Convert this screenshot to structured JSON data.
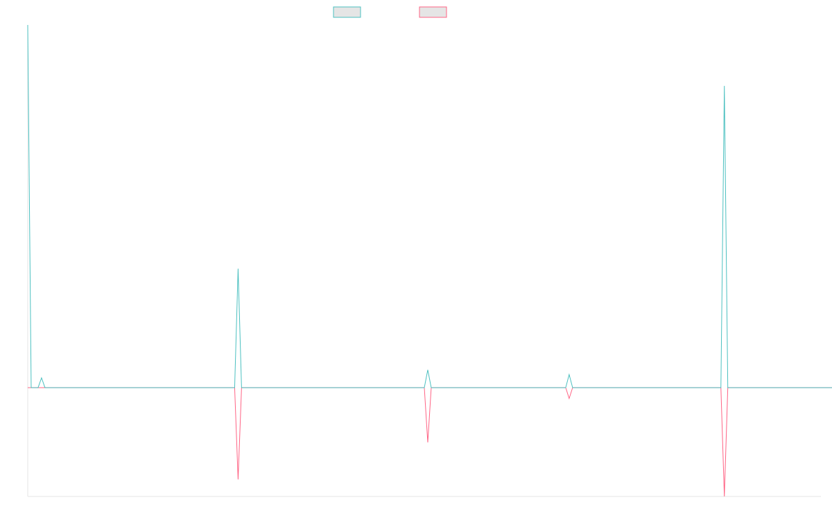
{
  "chart_data": {
    "type": "line",
    "x_count": 231,
    "grid": false,
    "legend": {
      "placement": "top-center"
    },
    "colors": {
      "series_a": "#4bc0c0",
      "series_b": "#ff6384",
      "legend_fill": "#e5e5e5",
      "axis": "#e5e5e5"
    },
    "ylim": [
      -30,
      100
    ],
    "series": [
      {
        "key": "series_a",
        "color": "#4bc0c0",
        "values": [
          100,
          0,
          0,
          0,
          2.7,
          0,
          0,
          0,
          0,
          0,
          0,
          0,
          0,
          0,
          0,
          0,
          0,
          0,
          0,
          0,
          0,
          0,
          0,
          0,
          0,
          0,
          0,
          0,
          0,
          0,
          0,
          0,
          0,
          0,
          0,
          0,
          0,
          0,
          0,
          0,
          0,
          0,
          0,
          0,
          0,
          0,
          0,
          0,
          0,
          0,
          0,
          0,
          0,
          0,
          0,
          0,
          0,
          0,
          0,
          0,
          0,
          32.8,
          0,
          0,
          0,
          0,
          0,
          0,
          0,
          0,
          0,
          0,
          0,
          0,
          0,
          0,
          0,
          0,
          0,
          0,
          0,
          0,
          0,
          0,
          0,
          0,
          0,
          0,
          0,
          0,
          0,
          0,
          0,
          0,
          0,
          0,
          0,
          0,
          0,
          0,
          0,
          0,
          0,
          0,
          0,
          0,
          0,
          0,
          0,
          0,
          0,
          0,
          0,
          0,
          0,
          0,
          4.9,
          0,
          0,
          0,
          0,
          0,
          0,
          0,
          0,
          0,
          0,
          0,
          0,
          0,
          0,
          0,
          0,
          0,
          0,
          0,
          0,
          0,
          0,
          0,
          0,
          0,
          0,
          0,
          0,
          0,
          0,
          0,
          0,
          0,
          0,
          0,
          0,
          0,
          0,
          0,
          0,
          3.6,
          0,
          0,
          0,
          0,
          0,
          0,
          0,
          0,
          0,
          0,
          0,
          0,
          0,
          0,
          0,
          0,
          0,
          0,
          0,
          0,
          0,
          0,
          0,
          0,
          0,
          0,
          0,
          0,
          0,
          0,
          0,
          0,
          0,
          0,
          0,
          0,
          0,
          0,
          0,
          0,
          0,
          0,
          0,
          0,
          83.2,
          0,
          0,
          0,
          0,
          0,
          0,
          0,
          0,
          0,
          0,
          0,
          0,
          0,
          0,
          0,
          0,
          0,
          0,
          0,
          0,
          0,
          0,
          0,
          0,
          0,
          0,
          0,
          0,
          0,
          0,
          0,
          0,
          0,
          0,
          0
        ]
      },
      {
        "key": "series_b",
        "color": "#ff6384",
        "values": [
          0,
          0,
          0,
          0,
          0,
          0,
          0,
          0,
          0,
          0,
          0,
          0,
          0,
          0,
          0,
          0,
          0,
          0,
          0,
          0,
          0,
          0,
          0,
          0,
          0,
          0,
          0,
          0,
          0,
          0,
          0,
          0,
          0,
          0,
          0,
          0,
          0,
          0,
          0,
          0,
          0,
          0,
          0,
          0,
          0,
          0,
          0,
          0,
          0,
          0,
          0,
          0,
          0,
          0,
          0,
          0,
          0,
          0,
          0,
          0,
          0,
          -25.3,
          0,
          0,
          0,
          0,
          0,
          0,
          0,
          0,
          0,
          0,
          0,
          0,
          0,
          0,
          0,
          0,
          0,
          0,
          0,
          0,
          0,
          0,
          0,
          0,
          0,
          0,
          0,
          0,
          0,
          0,
          0,
          0,
          0,
          0,
          0,
          0,
          0,
          0,
          0,
          0,
          0,
          0,
          0,
          0,
          0,
          0,
          0,
          0,
          0,
          0,
          0,
          0,
          0,
          0,
          -15.1,
          0,
          0,
          0,
          0,
          0,
          0,
          0,
          0,
          0,
          0,
          0,
          0,
          0,
          0,
          0,
          0,
          0,
          0,
          0,
          0,
          0,
          0,
          0,
          0,
          0,
          0,
          0,
          0,
          0,
          0,
          0,
          0,
          0,
          0,
          0,
          0,
          0,
          0,
          0,
          0,
          -3.0,
          0,
          0,
          0,
          0,
          0,
          0,
          0,
          0,
          0,
          0,
          0,
          0,
          0,
          0,
          0,
          0,
          0,
          0,
          0,
          0,
          0,
          0,
          0,
          0,
          0,
          0,
          0,
          0,
          0,
          0,
          0,
          0,
          0,
          0,
          0,
          0,
          0,
          0,
          0,
          0,
          0,
          0,
          0,
          0,
          -30,
          0,
          0,
          0,
          0,
          0,
          0,
          0,
          0,
          0,
          0,
          0,
          0,
          0,
          0,
          0,
          0,
          0,
          0,
          0,
          0,
          0,
          0,
          0,
          0,
          0,
          0,
          0,
          0,
          0,
          0,
          0,
          0,
          0,
          0,
          0
        ]
      }
    ]
  }
}
